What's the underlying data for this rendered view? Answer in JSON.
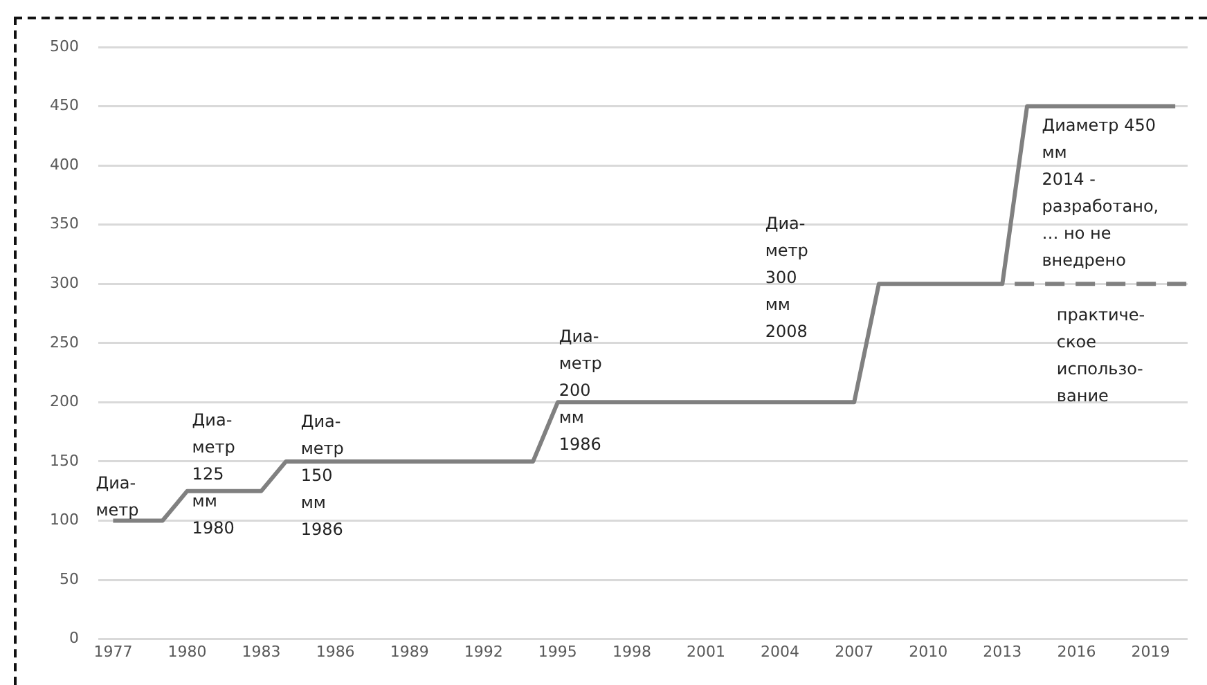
{
  "chart_data": {
    "type": "line",
    "series": [
      {
        "color": "#808080",
        "x": [
          1977,
          1979,
          1980,
          1983,
          1984,
          1994,
          1995,
          2007,
          2008,
          2013,
          2014,
          2020
        ],
        "values": [
          100,
          100,
          125,
          125,
          150,
          150,
          200,
          200,
          300,
          300,
          450,
          450
        ],
        "line_style": "solid"
      },
      {
        "color": "#808080",
        "x": [
          2013.5,
          2020.5
        ],
        "values": [
          300,
          300
        ],
        "line_style": "dashed"
      }
    ],
    "xlim": [
      1976.4,
      2020.5
    ],
    "xticks": [
      1977,
      1980,
      1983,
      1986,
      1989,
      1992,
      1995,
      1998,
      2001,
      2004,
      2007,
      2010,
      2013,
      2016,
      2019
    ],
    "ylim": [
      0,
      500
    ],
    "yticks": [
      0,
      50,
      100,
      150,
      200,
      250,
      300,
      350,
      400,
      450,
      500
    ],
    "grid": "y",
    "legend": false,
    "marker": "none",
    "annotations": [
      "Диа-\nметр",
      "Диа-\nметр\n125\nмм\n1980",
      "Диа-\nметр\n150\nмм\n1986",
      "Диа-\nметр\n200\nмм\n1986",
      "Диа-\nметр\n300\nмм\n2008",
      "Диаметр 450\nмм\n2014 -\nразработано,\n… но не\nвнедрено",
      "практиче-\nское\nиспользо-\nвание"
    ]
  }
}
